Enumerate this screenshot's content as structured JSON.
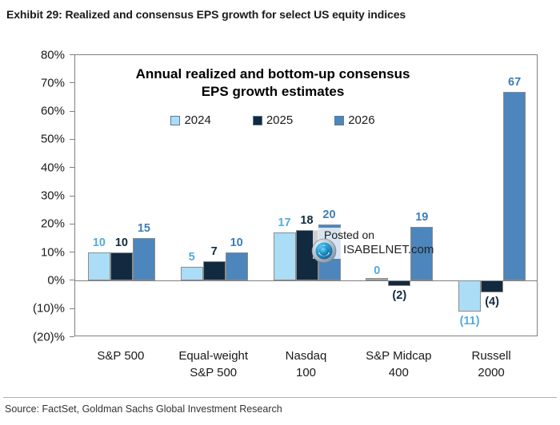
{
  "exhibit": {
    "title": "Exhibit 29: Realized and consensus EPS growth for select US equity indices"
  },
  "footer": {
    "source": "Source: FactSet, Goldman Sachs Global Investment Research"
  },
  "watermark": {
    "posted_on": "Posted on",
    "site": "ISABELNET.com"
  },
  "chart_data": {
    "type": "bar",
    "title_lines": [
      "Annual realized and bottom-up consensus",
      "EPS growth estimates"
    ],
    "categories": [
      [
        "S&P 500"
      ],
      [
        "Equal-weight",
        "S&P 500"
      ],
      [
        "Nasdaq",
        "100"
      ],
      [
        "S&P Midcap",
        "400"
      ],
      [
        "Russell",
        "2000"
      ]
    ],
    "series": [
      {
        "name": "2024",
        "color": "#ABDDF6",
        "label_color": "#54ABDF",
        "values": [
          10,
          5,
          17,
          0,
          -11
        ],
        "labels": [
          "10",
          "5",
          "17",
          "0",
          "(11)"
        ]
      },
      {
        "name": "2025",
        "color": "#122A40",
        "label_color": "#122A40",
        "values": [
          10,
          7,
          18,
          -2,
          -4
        ],
        "labels": [
          "10",
          "7",
          "18",
          "(2)",
          "(4)"
        ]
      },
      {
        "name": "2026",
        "color": "#4C86BC",
        "label_color": "#3F7CB6",
        "values": [
          15,
          10,
          20,
          19,
          67
        ],
        "labels": [
          "15",
          "10",
          "20",
          "19",
          "67"
        ]
      }
    ],
    "y_axis": {
      "min": -20,
      "max": 80,
      "ticks": [
        {
          "value": 80,
          "label": "80%"
        },
        {
          "value": 70,
          "label": "70%"
        },
        {
          "value": 60,
          "label": "60%"
        },
        {
          "value": 50,
          "label": "50%"
        },
        {
          "value": 40,
          "label": "40%"
        },
        {
          "value": 30,
          "label": "30%"
        },
        {
          "value": 20,
          "label": "20%"
        },
        {
          "value": 10,
          "label": "10%"
        },
        {
          "value": 0,
          "label": "0%"
        },
        {
          "value": -10,
          "label": "(10)%"
        },
        {
          "value": -20,
          "label": "(20)%"
        }
      ]
    },
    "grid": false,
    "legend_position": "top-center",
    "bar_border_color": "#8c8c8c"
  }
}
